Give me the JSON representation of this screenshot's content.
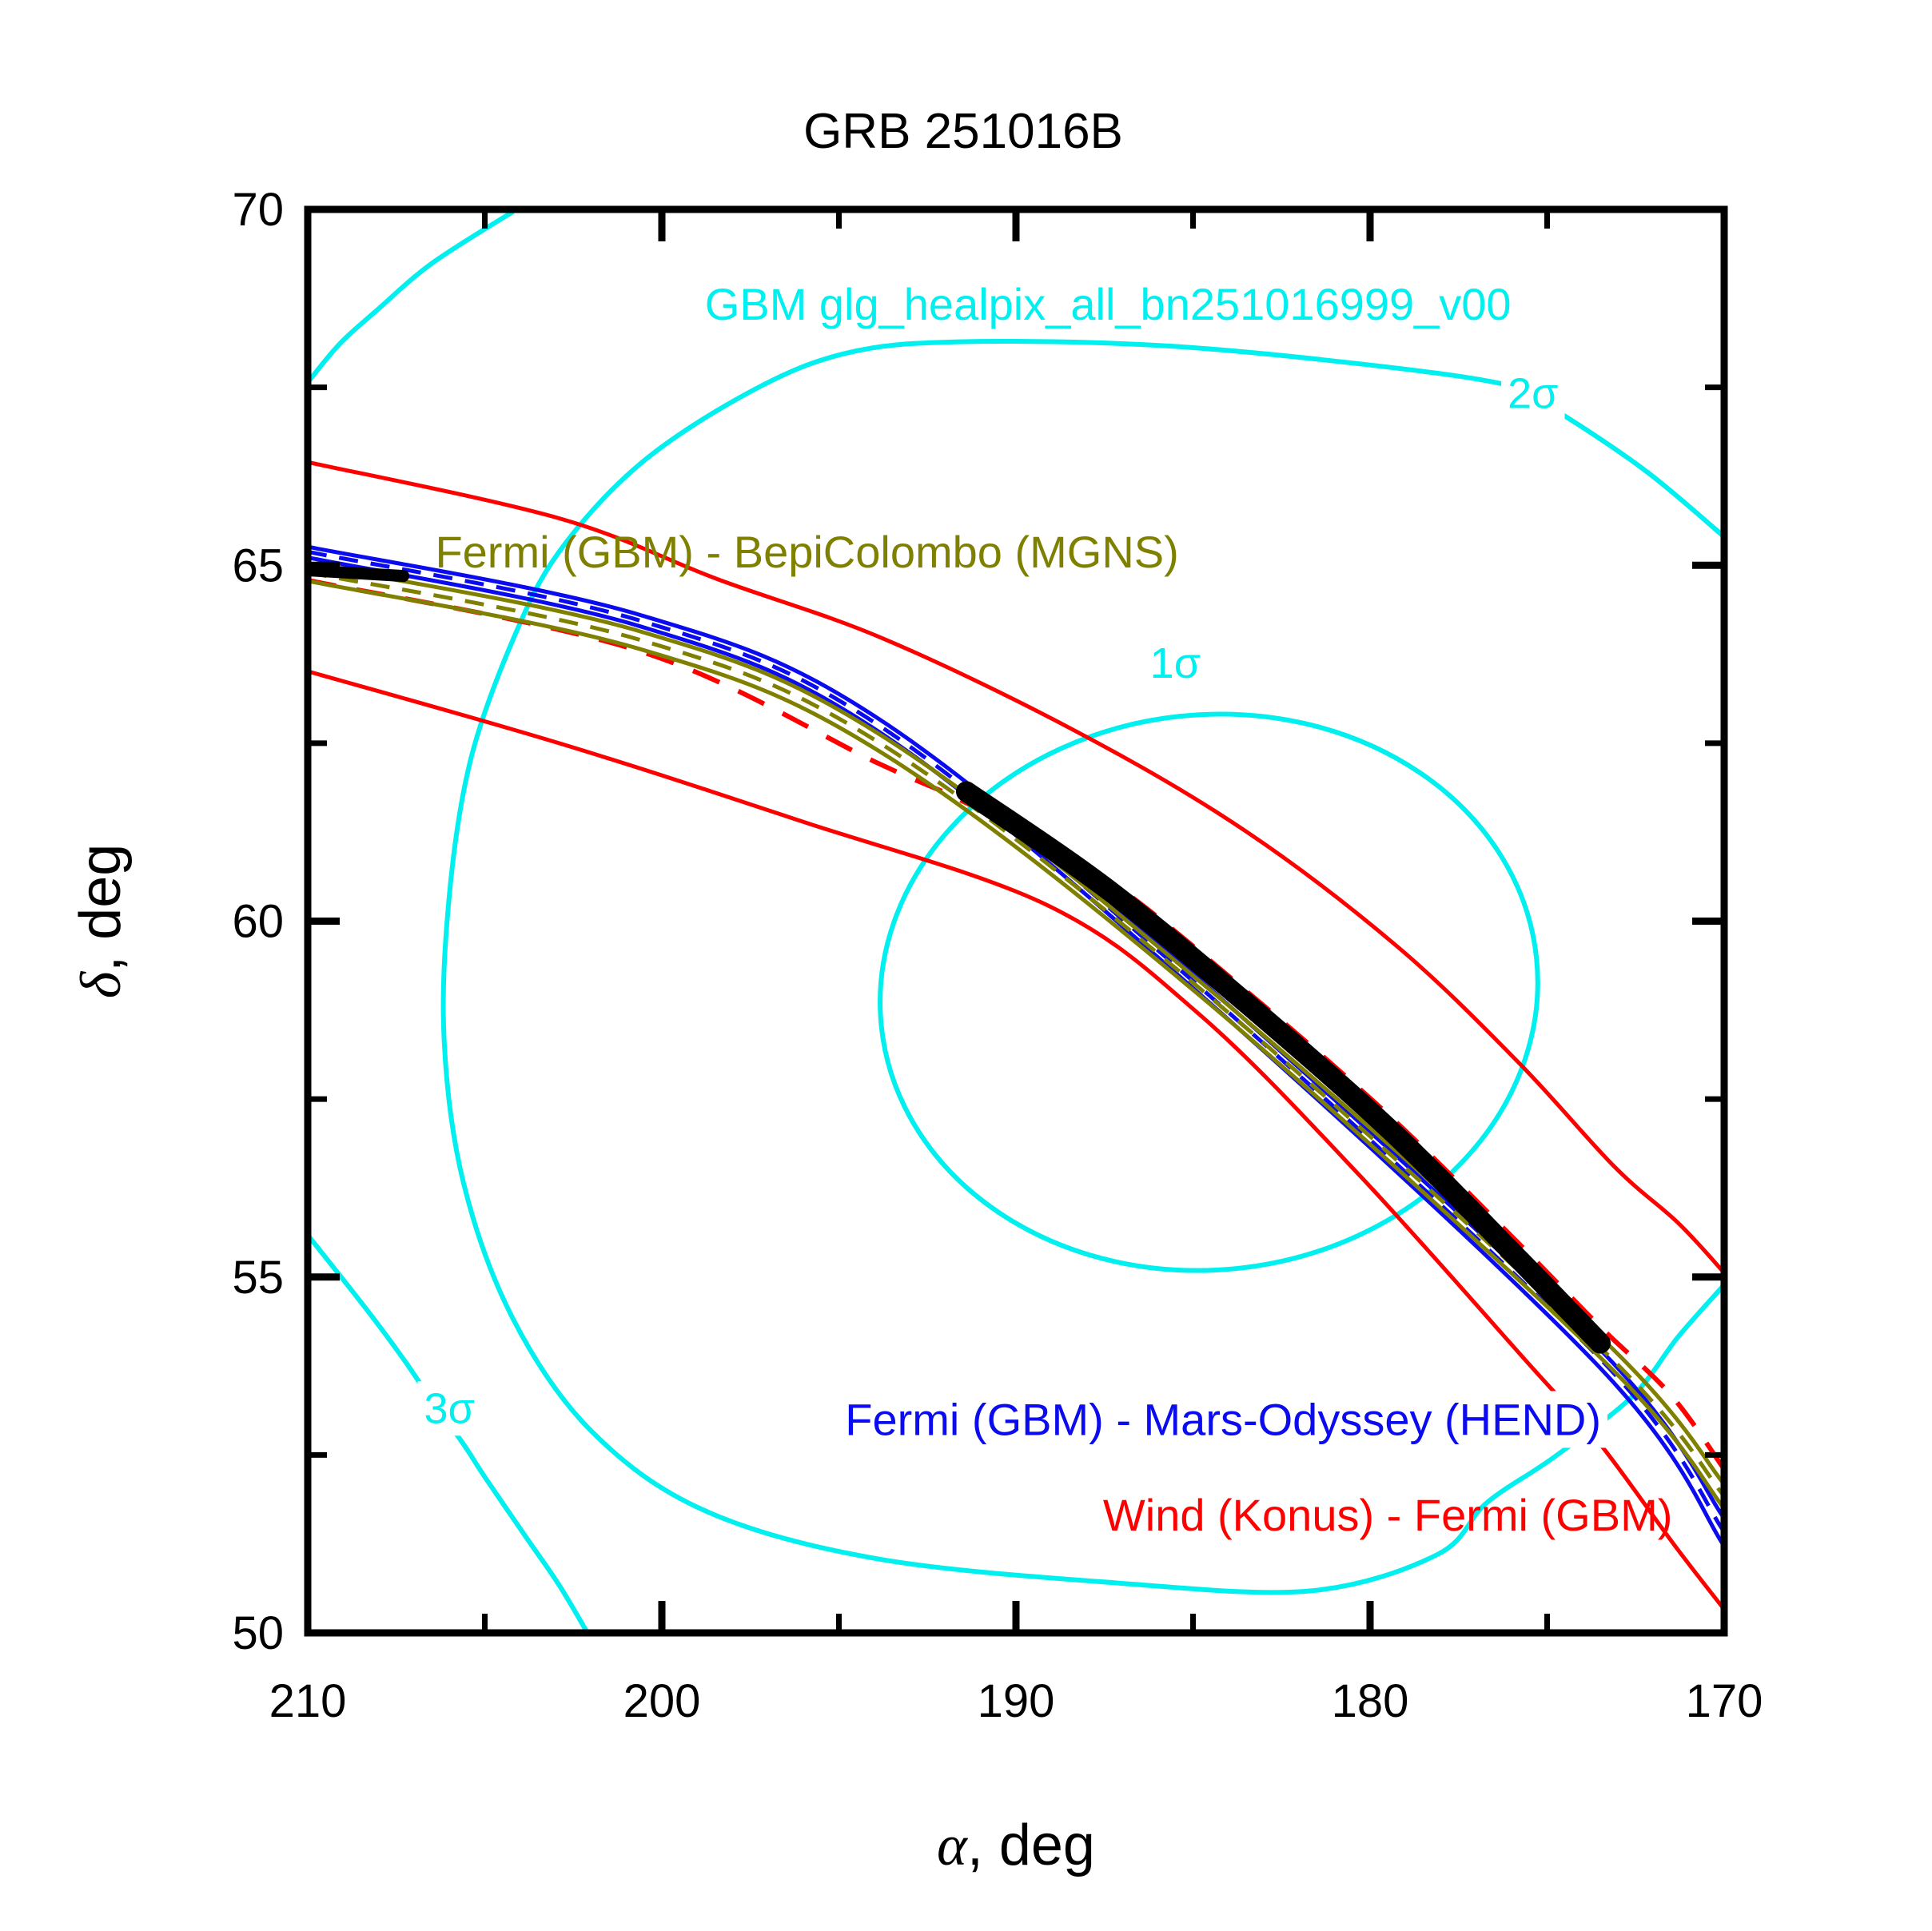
{
  "colors": {
    "cyan": "#00EFEF",
    "blue": "#0B0BEF",
    "olive": "#7F7F00",
    "red": "#FF0000",
    "black": "#000000"
  },
  "chart_data": {
    "type": "line",
    "title": "GRB 251016B",
    "xlabel": "α, deg",
    "ylabel": "δ, deg",
    "x_axis": {
      "min": 170,
      "max": 210,
      "reversed": true,
      "major_ticks": [
        210,
        200,
        190,
        180,
        170
      ],
      "minor_ticks": [
        205,
        195,
        185,
        175
      ]
    },
    "y_axis": {
      "min": 50,
      "max": 70,
      "major_ticks": [
        70,
        65,
        60,
        55,
        50
      ],
      "minor_ticks": [
        67.5,
        62.5,
        57.5,
        52.5
      ]
    },
    "grid": false,
    "legend_position": "in-plot-annotations",
    "series": [
      {
        "id": "gbm-healpix-1sigma-contour",
        "group": "GBM glg_healpix_all_bn251016999_v00",
        "color": "cyan",
        "style": "solid",
        "width": 6,
        "shape": "ellipse",
        "center": [
          184.55,
          59.0
        ],
        "rx_deg": 9.3,
        "ry_deg": 3.9,
        "rotation_deg": -6
      },
      {
        "id": "gbm-healpix-2sigma-contour",
        "group": "GBM glg_healpix_all_bn251016999_v00",
        "color": "cyan",
        "style": "solid",
        "width": 6,
        "shape": "path",
        "points": [
          [
            170.0,
            65.4
          ],
          [
            172.2,
            66.32
          ],
          [
            174.7,
            67.16
          ],
          [
            176.1,
            67.53
          ],
          [
            180.3,
            67.83
          ],
          [
            186.0,
            68.09
          ],
          [
            191.6,
            68.14
          ],
          [
            194.8,
            67.98
          ],
          [
            197.5,
            67.44
          ],
          [
            200.6,
            66.43
          ],
          [
            202.9,
            65.19
          ],
          [
            204.2,
            63.96
          ],
          [
            205.4,
            62.27
          ],
          [
            206.0,
            60.37
          ],
          [
            206.15,
            58.34
          ],
          [
            205.6,
            56.32
          ],
          [
            204.2,
            54.41
          ],
          [
            202.0,
            52.84
          ],
          [
            198.8,
            51.72
          ],
          [
            193.9,
            51.04
          ],
          [
            187.1,
            50.7
          ],
          [
            181.7,
            50.59
          ],
          [
            178.1,
            51.1
          ],
          [
            176.7,
            51.83
          ],
          [
            174.8,
            52.47
          ],
          [
            172.6,
            53.32
          ],
          [
            171.3,
            54.16
          ],
          [
            170.0,
            54.89
          ]
        ]
      },
      {
        "id": "gbm-healpix-3sigma-contour-upper-left",
        "group": "GBM glg_healpix_all_bn251016999_v00",
        "color": "cyan",
        "style": "solid",
        "width": 6,
        "shape": "path",
        "points": [
          [
            204.2,
            69.97
          ],
          [
            206.5,
            69.24
          ],
          [
            208.1,
            68.56
          ],
          [
            209.1,
            68.11
          ],
          [
            210.0,
            67.57
          ]
        ]
      },
      {
        "id": "gbm-healpix-3sigma-contour-lower-left",
        "group": "GBM glg_healpix_all_bn251016999_v00",
        "color": "cyan",
        "style": "solid",
        "width": 6,
        "shape": "path",
        "points": [
          [
            210.0,
            55.59
          ],
          [
            208.3,
            54.52
          ],
          [
            207.3,
            53.85
          ],
          [
            206.6,
            53.34
          ],
          [
            205.6,
            52.65
          ],
          [
            205.0,
            52.19
          ],
          [
            203.8,
            51.32
          ],
          [
            202.9,
            50.67
          ],
          [
            202.1,
            50.0
          ]
        ]
      },
      {
        "id": "konus-fermi-annulus-upper",
        "group": "Wind (Konus) - Fermi (GBM)",
        "color": "red",
        "style": "solid",
        "width": 5,
        "shape": "path",
        "points": [
          [
            210.0,
            66.45
          ],
          [
            202.9,
            65.66
          ],
          [
            198.4,
            64.8
          ],
          [
            193.7,
            63.96
          ],
          [
            188.2,
            62.64
          ],
          [
            183.5,
            61.26
          ],
          [
            179.2,
            59.63
          ],
          [
            175.8,
            58.01
          ],
          [
            173.1,
            56.55
          ],
          [
            171.3,
            55.76
          ],
          [
            170.0,
            55.06
          ]
        ]
      },
      {
        "id": "konus-fermi-annulus-center",
        "group": "Wind (Konus) - Fermi (GBM)",
        "color": "red",
        "style": "dashed",
        "width": 6,
        "shape": "path",
        "points": [
          [
            210.0,
            64.79
          ],
          [
            200.6,
            63.79
          ],
          [
            193.9,
            62.22
          ],
          [
            191.4,
            61.66
          ],
          [
            187.5,
            60.61
          ],
          [
            183.5,
            59.02
          ],
          [
            179.4,
            57.24
          ],
          [
            175.8,
            55.47
          ],
          [
            173.5,
            54.3
          ],
          [
            171.5,
            53.34
          ],
          [
            170.0,
            52.3
          ]
        ]
      },
      {
        "id": "konus-fermi-annulus-lower",
        "group": "Wind (Konus) - Fermi (GBM)",
        "color": "red",
        "style": "solid",
        "width": 5,
        "shape": "path",
        "points": [
          [
            210.0,
            63.51
          ],
          [
            202.9,
            62.5
          ],
          [
            196.1,
            61.41
          ],
          [
            189.1,
            60.22
          ],
          [
            184.8,
            58.68
          ],
          [
            180.3,
            56.43
          ],
          [
            175.5,
            53.77
          ],
          [
            173.5,
            52.65
          ],
          [
            171.4,
            51.23
          ],
          [
            170.0,
            50.33
          ]
        ]
      },
      {
        "id": "hend-fermi-annulus-upper",
        "group": "Fermi (GBM) - Mars-Odyssey (HEND)",
        "color": "blue",
        "style": "solid",
        "width": 5,
        "shape": "path",
        "points": [
          [
            210.0,
            65.26
          ],
          [
            200.6,
            64.3
          ],
          [
            193.9,
            62.85
          ],
          [
            184.8,
            59.17
          ],
          [
            173.5,
            53.98
          ],
          [
            170.0,
            51.61
          ]
        ]
      },
      {
        "id": "hend-fermi-annulus-center",
        "group": "Fermi (GBM) - Mars-Odyssey (HEND)",
        "color": "blue",
        "style": "dashed",
        "width": 5,
        "shape": "path",
        "points": [
          [
            210.0,
            65.19
          ],
          [
            200.6,
            64.22
          ],
          [
            193.9,
            62.76
          ],
          [
            184.8,
            59.07
          ],
          [
            173.5,
            53.85
          ],
          [
            170.0,
            51.42
          ]
        ]
      },
      {
        "id": "hend-fermi-annulus-lower",
        "group": "Fermi (GBM) - Mars-Odyssey (HEND)",
        "color": "blue",
        "style": "solid",
        "width": 5,
        "shape": "path",
        "points": [
          [
            210.0,
            65.11
          ],
          [
            200.6,
            64.14
          ],
          [
            193.9,
            62.67
          ],
          [
            184.8,
            58.97
          ],
          [
            173.5,
            53.72
          ],
          [
            170.0,
            51.22
          ]
        ]
      },
      {
        "id": "mgns-fermi-annulus-upper",
        "group": "Fermi (GBM) - BepiColombo (MGNS)",
        "color": "olive",
        "style": "solid",
        "width": 5,
        "shape": "path",
        "points": [
          [
            210.0,
            65.02
          ],
          [
            200.6,
            64.07
          ],
          [
            193.9,
            62.64
          ],
          [
            184.8,
            59.15
          ],
          [
            173.5,
            54.16
          ],
          [
            170.0,
            52.09
          ]
        ]
      },
      {
        "id": "mgns-fermi-annulus-center",
        "group": "Fermi (GBM) - BepiColombo (MGNS)",
        "color": "olive",
        "style": "dashed",
        "width": 5,
        "shape": "path",
        "points": [
          [
            210.0,
            64.9
          ],
          [
            200.6,
            63.95
          ],
          [
            193.9,
            62.52
          ],
          [
            184.8,
            59.05
          ],
          [
            173.5,
            54.01
          ],
          [
            170.0,
            51.92
          ]
        ]
      },
      {
        "id": "mgns-fermi-annulus-lower",
        "group": "Fermi (GBM) - BepiColombo (MGNS)",
        "color": "olive",
        "style": "solid",
        "width": 5,
        "shape": "path",
        "points": [
          [
            210.0,
            64.78
          ],
          [
            200.6,
            63.82
          ],
          [
            193.9,
            62.4
          ],
          [
            184.8,
            58.95
          ],
          [
            173.5,
            53.87
          ],
          [
            170.0,
            51.75
          ]
        ]
      },
      {
        "id": "combined-localization-arc",
        "group": "intersection",
        "color": "black",
        "style": "solid",
        "width": 26,
        "linecap": "round",
        "shape": "path",
        "points": [
          [
            191.4,
            61.82
          ],
          [
            187.5,
            60.48
          ],
          [
            183.5,
            58.85
          ],
          [
            179.4,
            57.05
          ],
          [
            175.8,
            55.25
          ],
          [
            173.5,
            54.07
          ]
        ]
      },
      {
        "id": "combined-localization-arc-left-stub",
        "group": "intersection",
        "color": "black",
        "style": "solid",
        "width": 15,
        "linecap": "round",
        "shape": "path",
        "points": [
          [
            210.0,
            64.93
          ],
          [
            207.3,
            64.85
          ]
        ]
      }
    ],
    "labels": [
      {
        "id": "label-gbm-healpix",
        "text": "GBM glg_healpix_all_bn251016999_v00",
        "color": "cyan",
        "pos": [
          187.4,
          68.45
        ],
        "size": 56,
        "bg": true
      },
      {
        "id": "label-2sigma",
        "text": "2σ",
        "color": "cyan",
        "pos": [
          175.4,
          67.21
        ],
        "size": 54,
        "bg": true
      },
      {
        "id": "label-1sigma",
        "text": "1σ",
        "color": "cyan",
        "pos": [
          185.5,
          63.42
        ],
        "size": 54,
        "bg": true
      },
      {
        "id": "label-3sigma",
        "text": "3σ",
        "color": "cyan",
        "pos": [
          206.0,
          52.95
        ],
        "size": 54,
        "bg": true
      },
      {
        "id": "label-mgns-annulus",
        "text": "Fermi (GBM) - BepiColombo (MGNS)",
        "color": "olive",
        "pos": [
          195.9,
          64.97
        ],
        "size": 56,
        "bg": false
      },
      {
        "id": "label-hend-annulus",
        "text": "Fermi (GBM) - Mars-Odyssey (HEND)",
        "color": "blue",
        "pos": [
          184.15,
          52.78
        ],
        "size": 56,
        "bg": true
      },
      {
        "id": "label-konus-annulus",
        "text": "Wind (Konus) - Fermi (GBM)",
        "color": "red",
        "pos": [
          179.5,
          51.44
        ],
        "size": 56,
        "bg": false
      }
    ]
  }
}
